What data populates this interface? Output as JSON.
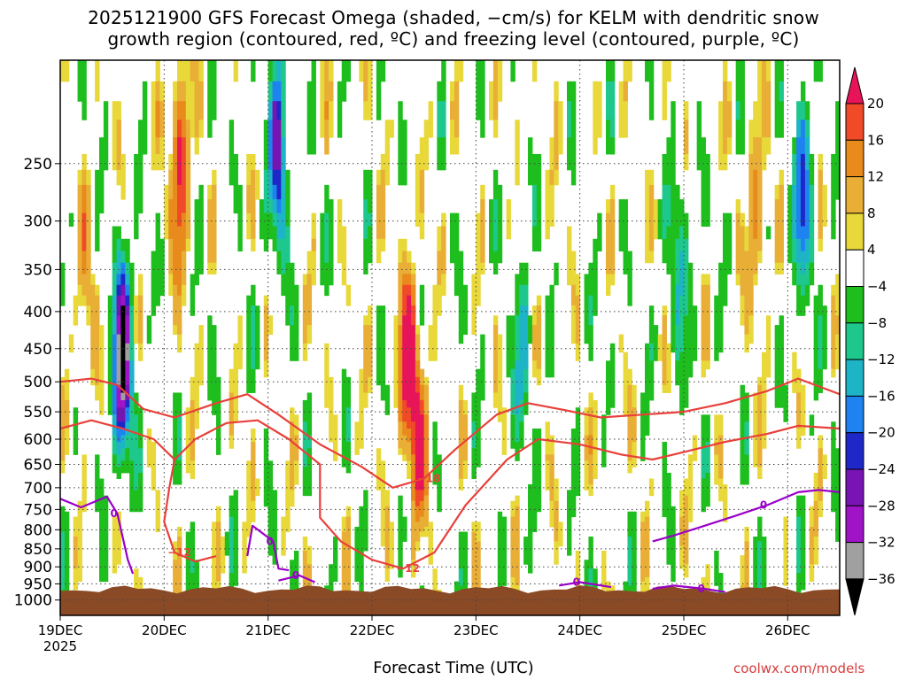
{
  "chart_data": {
    "type": "heatmap",
    "title_line1": "2025121900 GFS Forecast Omega (shaded, −cm/s) for KELM with dendritic snow",
    "title_line2": "growth region (contoured, red, ºC) and freezing level (contoured, purple, ºC)",
    "xlabel": "Forecast Time (UTC)",
    "ylabel": "",
    "y_axis": {
      "type": "pressure_hPa",
      "range": [
        1050,
        180
      ],
      "ticks": [
        "250",
        "300",
        "350",
        "400",
        "450",
        "500",
        "550",
        "600",
        "650",
        "700",
        "750",
        "800",
        "850",
        "900",
        "950",
        "1000"
      ]
    },
    "x_axis": {
      "range_days": [
        0,
        7.5
      ],
      "ticks": [
        {
          "label": "19DEC",
          "sublabel": "2025",
          "day": 0
        },
        {
          "label": "20DEC",
          "day": 1
        },
        {
          "label": "21DEC",
          "day": 2
        },
        {
          "label": "22DEC",
          "day": 3
        },
        {
          "label": "23DEC",
          "day": 4
        },
        {
          "label": "24DEC",
          "day": 5
        },
        {
          "label": "25DEC",
          "day": 6
        },
        {
          "label": "26DEC",
          "day": 7
        }
      ]
    },
    "colorbar": {
      "labels": [
        "20",
        "16",
        "12",
        "8",
        "4",
        "−4",
        "−8",
        "−12",
        "−16",
        "−20",
        "−24",
        "−28",
        "−32",
        "−36"
      ],
      "colors": [
        "#e8145a",
        "#f04a28",
        "#e88a1c",
        "#e8ae36",
        "#e8d83a",
        "#ffffff",
        "#1ebe1e",
        "#1ec88c",
        "#1eb4c8",
        "#1e82f0",
        "#1e28c8",
        "#7814b4",
        "#a014c8",
        "#a0a0a0",
        "#000000"
      ]
    },
    "contours_red": [
      {
        "label": "−18",
        "points": [
          [
            0,
            500
          ],
          [
            0.3,
            495
          ],
          [
            0.55,
            505
          ],
          [
            0.8,
            545
          ],
          [
            1.1,
            560
          ],
          [
            1.5,
            535
          ],
          [
            1.8,
            520
          ],
          [
            2.1,
            555
          ],
          [
            2.5,
            610
          ],
          [
            2.9,
            655
          ],
          [
            3.2,
            700
          ],
          [
            3.5,
            680
          ],
          [
            3.8,
            620
          ],
          [
            4.2,
            555
          ],
          [
            4.5,
            535
          ],
          [
            4.8,
            545
          ],
          [
            5.2,
            560
          ],
          [
            5.6,
            555
          ],
          [
            6.0,
            550
          ],
          [
            6.4,
            535
          ],
          [
            6.8,
            515
          ],
          [
            7.1,
            495
          ],
          [
            7.5,
            520
          ]
        ]
      },
      {
        "label": "−12",
        "points": [
          [
            0,
            580
          ],
          [
            0.3,
            565
          ],
          [
            0.6,
            580
          ],
          [
            0.9,
            600
          ],
          [
            1.1,
            640
          ],
          [
            1.3,
            600
          ],
          [
            1.6,
            570
          ],
          [
            1.9,
            565
          ],
          [
            2.2,
            600
          ],
          [
            2.5,
            650
          ],
          [
            2.5,
            770
          ],
          [
            2.7,
            830
          ],
          [
            3.0,
            880
          ],
          [
            3.3,
            905
          ],
          [
            3.6,
            860
          ],
          [
            3.9,
            740
          ],
          [
            4.3,
            640
          ],
          [
            4.6,
            600
          ],
          [
            5.0,
            610
          ],
          [
            5.4,
            630
          ],
          [
            5.7,
            640
          ],
          [
            6.0,
            625
          ],
          [
            6.4,
            605
          ],
          [
            6.8,
            590
          ],
          [
            7.1,
            575
          ],
          [
            7.5,
            580
          ]
        ]
      },
      {
        "label": "−12",
        "points": [
          [
            1.1,
            640
          ],
          [
            1.05,
            700
          ],
          [
            1.0,
            780
          ],
          [
            1.1,
            860
          ],
          [
            1.3,
            885
          ],
          [
            1.5,
            870
          ]
        ]
      }
    ],
    "contours_purple": [
      {
        "label": "0",
        "points": [
          [
            0,
            725
          ],
          [
            0.2,
            745
          ],
          [
            0.45,
            720
          ],
          [
            0.55,
            760
          ],
          [
            0.65,
            880
          ],
          [
            0.7,
            920
          ]
        ]
      },
      {
        "label": "0",
        "points": [
          [
            1.8,
            870
          ],
          [
            1.85,
            790
          ],
          [
            2.05,
            830
          ],
          [
            2.1,
            905
          ],
          [
            2.2,
            910
          ]
        ]
      },
      {
        "label": "0",
        "points": [
          [
            2.1,
            940
          ],
          [
            2.3,
            925
          ],
          [
            2.45,
            945
          ]
        ]
      },
      {
        "label": "0",
        "points": [
          [
            4.8,
            955
          ],
          [
            5.0,
            945
          ],
          [
            5.3,
            960
          ]
        ]
      },
      {
        "label": "0",
        "points": [
          [
            5.7,
            965
          ],
          [
            5.9,
            955
          ],
          [
            6.2,
            965
          ],
          [
            6.4,
            975
          ]
        ]
      },
      {
        "label": "0",
        "points": [
          [
            5.7,
            830
          ],
          [
            5.9,
            815
          ],
          [
            6.2,
            790
          ],
          [
            6.5,
            765
          ],
          [
            6.8,
            740
          ],
          [
            7.1,
            710
          ],
          [
            7.3,
            705
          ],
          [
            7.5,
            710
          ]
        ]
      }
    ],
    "terrain_pressure_hPa": 950,
    "omega_samples": [
      {
        "day": 0.25,
        "p": 380,
        "v": 8
      },
      {
        "day": 0.6,
        "p": 470,
        "v": -36
      },
      {
        "day": 1.15,
        "p": 250,
        "v": 20
      },
      {
        "day": 2.1,
        "p": 240,
        "v": -24
      },
      {
        "day": 3.35,
        "p": 470,
        "v": 20
      },
      {
        "day": 3.45,
        "p": 600,
        "v": 14
      },
      {
        "day": 4.45,
        "p": 450,
        "v": -12
      },
      {
        "day": 5.95,
        "p": 350,
        "v": -12
      },
      {
        "day": 6.7,
        "p": 300,
        "v": 12
      },
      {
        "day": 7.15,
        "p": 280,
        "v": -20
      }
    ]
  },
  "credit": "coolwx.com/models"
}
